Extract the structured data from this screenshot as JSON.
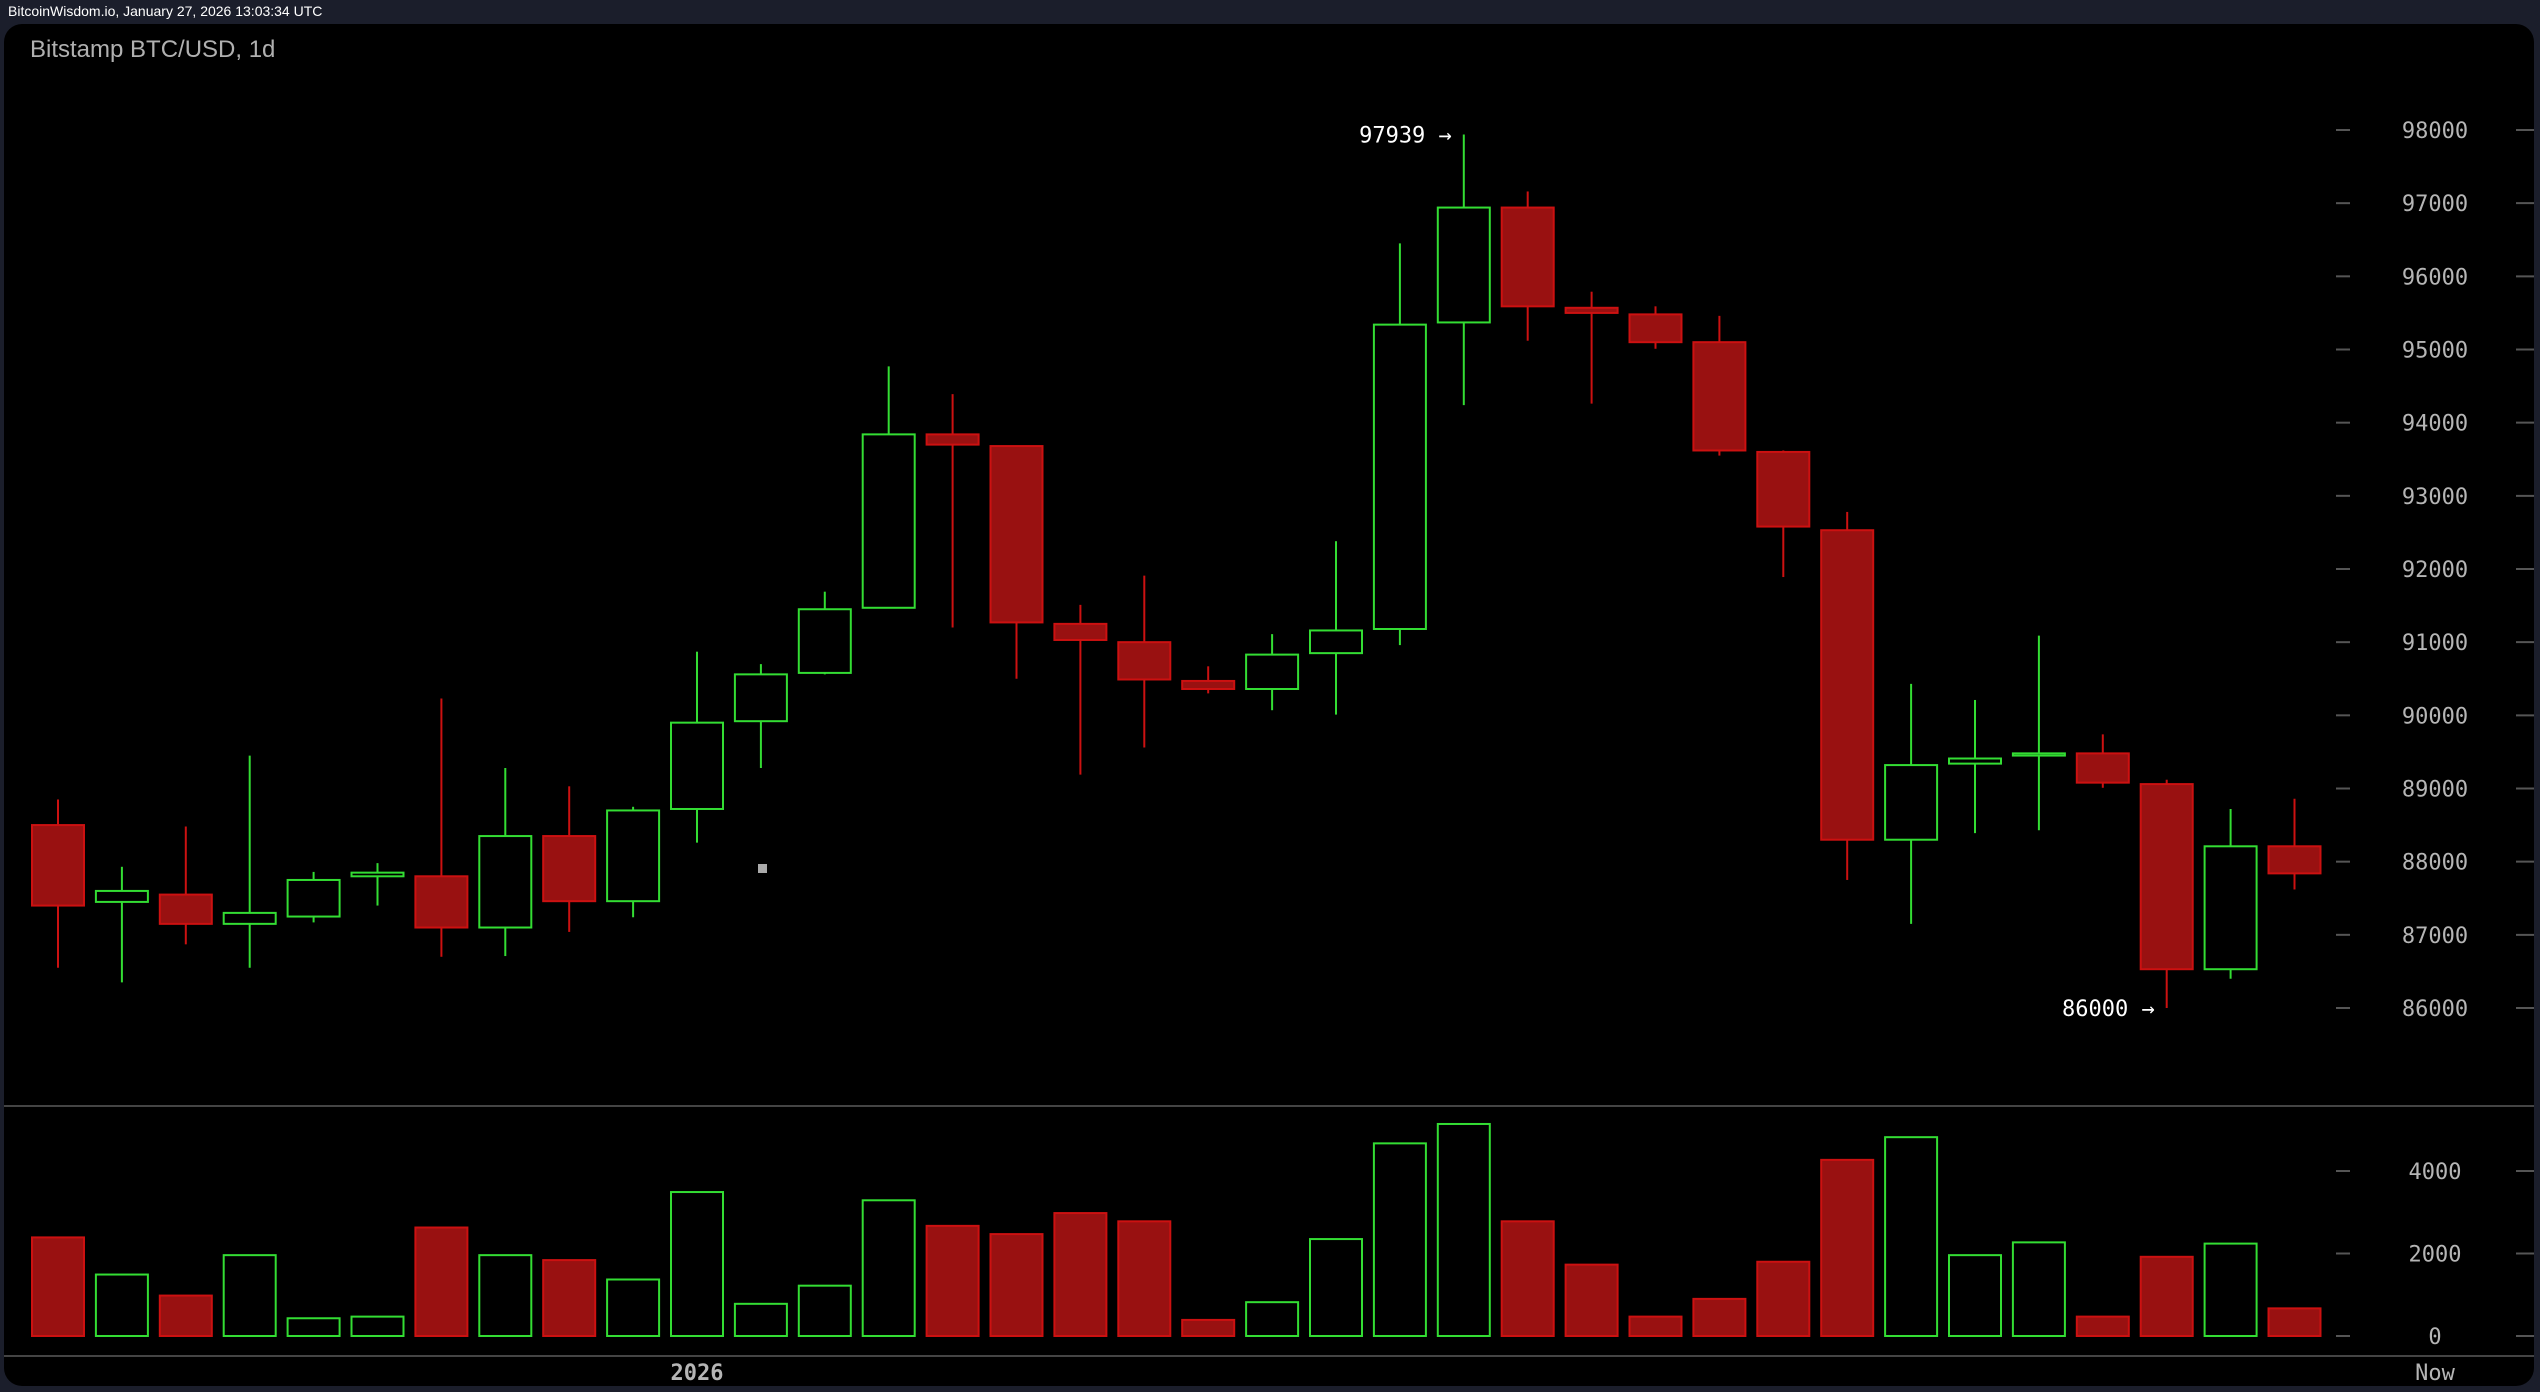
{
  "header": {
    "source_line": "BitcoinWisdom.io, January 27, 2026 13:03:34 UTC"
  },
  "chart_data": {
    "type": "candlestick",
    "title": "Bitstamp BTC/USD, 1d",
    "colors": {
      "up": "#33dd33",
      "down": "#cc1111",
      "down_fill": "#991111",
      "background": "#000000"
    },
    "price_axis": {
      "ticks": [
        86000,
        87000,
        88000,
        89000,
        90000,
        91000,
        92000,
        93000,
        94000,
        95000,
        96000,
        97000,
        98000
      ],
      "range": [
        85000,
        98500
      ]
    },
    "volume_axis": {
      "ticks": [
        0,
        2000,
        4000
      ],
      "range": [
        0,
        5400
      ]
    },
    "x_labels": [
      {
        "index": 10,
        "label": "2026"
      },
      {
        "index": 35,
        "label": "Now"
      }
    ],
    "annotations": [
      {
        "index": 22,
        "price": 97939,
        "label": "97939 →"
      },
      {
        "index": 33,
        "price": 86000,
        "label": "86000 →"
      }
    ],
    "candles": [
      {
        "o": 88500,
        "h": 88850,
        "l": 86550,
        "c": 87400,
        "v": 2390
      },
      {
        "o": 87450,
        "h": 87930,
        "l": 86350,
        "c": 87600,
        "v": 1490
      },
      {
        "o": 87550,
        "h": 88480,
        "l": 86870,
        "c": 87150,
        "v": 980
      },
      {
        "o": 87150,
        "h": 89450,
        "l": 86550,
        "c": 87300,
        "v": 1960
      },
      {
        "o": 87250,
        "h": 87860,
        "l": 87170,
        "c": 87750,
        "v": 430
      },
      {
        "o": 87800,
        "h": 87980,
        "l": 87400,
        "c": 87850,
        "v": 470
      },
      {
        "o": 87800,
        "h": 90230,
        "l": 86700,
        "c": 87100,
        "v": 2630
      },
      {
        "o": 87100,
        "h": 89280,
        "l": 86710,
        "c": 88350,
        "v": 1960
      },
      {
        "o": 88350,
        "h": 89030,
        "l": 87040,
        "c": 87460,
        "v": 1840
      },
      {
        "o": 87460,
        "h": 88750,
        "l": 87240,
        "c": 88700,
        "v": 1370
      },
      {
        "o": 88720,
        "h": 90870,
        "l": 88260,
        "c": 89900,
        "v": 3490
      },
      {
        "o": 89920,
        "h": 90700,
        "l": 89280,
        "c": 90560,
        "v": 780
      },
      {
        "o": 90580,
        "h": 91690,
        "l": 90560,
        "c": 91450,
        "v": 1220
      },
      {
        "o": 91470,
        "h": 94770,
        "l": 91470,
        "c": 93840,
        "v": 3290
      },
      {
        "o": 93840,
        "h": 94390,
        "l": 91200,
        "c": 93700,
        "v": 2670
      },
      {
        "o": 93680,
        "h": 93680,
        "l": 90500,
        "c": 91270,
        "v": 2470
      },
      {
        "o": 91250,
        "h": 91510,
        "l": 89190,
        "c": 91030,
        "v": 2980
      },
      {
        "o": 91000,
        "h": 91910,
        "l": 89560,
        "c": 90490,
        "v": 2780
      },
      {
        "o": 90470,
        "h": 90670,
        "l": 90300,
        "c": 90360,
        "v": 390
      },
      {
        "o": 90360,
        "h": 91110,
        "l": 90070,
        "c": 90830,
        "v": 820
      },
      {
        "o": 90850,
        "h": 92380,
        "l": 90010,
        "c": 91160,
        "v": 2350
      },
      {
        "o": 91180,
        "h": 96450,
        "l": 90960,
        "c": 95340,
        "v": 4670
      },
      {
        "o": 95370,
        "h": 97939,
        "l": 94240,
        "c": 96940,
        "v": 5140
      },
      {
        "o": 96940,
        "h": 97160,
        "l": 95120,
        "c": 95590,
        "v": 2780
      },
      {
        "o": 95570,
        "h": 95790,
        "l": 94260,
        "c": 95500,
        "v": 1730
      },
      {
        "o": 95480,
        "h": 95590,
        "l": 95010,
        "c": 95100,
        "v": 470
      },
      {
        "o": 95100,
        "h": 95460,
        "l": 93550,
        "c": 93620,
        "v": 900
      },
      {
        "o": 93600,
        "h": 93620,
        "l": 91890,
        "c": 92580,
        "v": 1800
      },
      {
        "o": 92530,
        "h": 92780,
        "l": 87750,
        "c": 88300,
        "v": 4270
      },
      {
        "o": 88300,
        "h": 90430,
        "l": 87150,
        "c": 89320,
        "v": 4820
      },
      {
        "o": 89340,
        "h": 90210,
        "l": 88390,
        "c": 89410,
        "v": 1960
      },
      {
        "o": 89450,
        "h": 91090,
        "l": 88430,
        "c": 89480,
        "v": 2270
      },
      {
        "o": 89480,
        "h": 89740,
        "l": 89010,
        "c": 89080,
        "v": 470
      },
      {
        "o": 89060,
        "h": 89120,
        "l": 86000,
        "c": 86530,
        "v": 1920
      },
      {
        "o": 86530,
        "h": 88720,
        "l": 86400,
        "c": 88210,
        "v": 2240
      },
      {
        "o": 88210,
        "h": 88860,
        "l": 87620,
        "c": 87840,
        "v": 670
      }
    ]
  }
}
